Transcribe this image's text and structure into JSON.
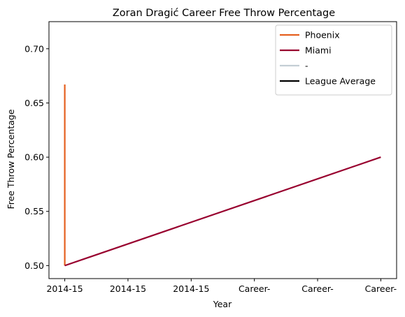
{
  "chart_data": {
    "type": "line",
    "title": "Zoran Dragić Career Free Throw Percentage",
    "xlabel": "Year",
    "ylabel": "Free Throw Percentage",
    "x_tick_labels": [
      "2014-15",
      "2014-15",
      "2014-15",
      "Career-",
      "Career-",
      "Career-"
    ],
    "xlim": [
      -0.25,
      5.25
    ],
    "ylim": [
      0.488,
      0.725
    ],
    "y_ticks": [
      0.5,
      0.55,
      0.6,
      0.65,
      0.7
    ],
    "y_tick_labels": [
      "0.50",
      "0.55",
      "0.60",
      "0.65",
      "0.70"
    ],
    "grid": false,
    "legend_position": "top-right",
    "series": [
      {
        "name": "Phoenix",
        "color": "#E56020",
        "x": [
          0,
          0
        ],
        "y": [
          0.667,
          0.5
        ]
      },
      {
        "name": "Miami",
        "color": "#98002E",
        "x": [
          0,
          5
        ],
        "y": [
          0.5,
          0.6
        ]
      },
      {
        "name": "-",
        "color": "#C4CED4",
        "x": [],
        "y": []
      },
      {
        "name": "League Average",
        "color": "#000000",
        "x": [],
        "y": []
      }
    ]
  }
}
